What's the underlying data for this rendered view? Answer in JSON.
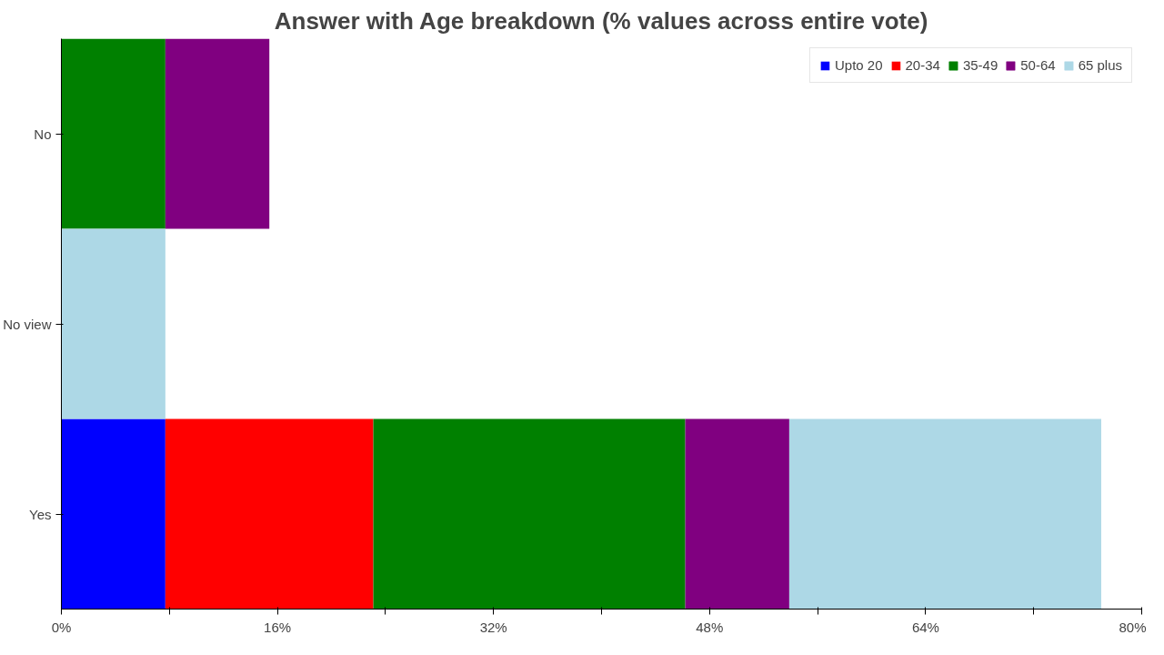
{
  "chart_data": {
    "type": "bar",
    "orientation": "horizontal",
    "stacked": true,
    "title": "Answer with Age breakdown (% values across entire vote)",
    "categories": [
      "No",
      "No view",
      "Yes"
    ],
    "series": [
      {
        "name": "Upto 20",
        "color": "#0000ff",
        "values": [
          null,
          null,
          7.7
        ]
      },
      {
        "name": "20-34",
        "color": "#ff0000",
        "values": [
          null,
          null,
          15.4
        ]
      },
      {
        "name": "35-49",
        "color": "#008000",
        "values": [
          7.7,
          null,
          23.1
        ]
      },
      {
        "name": "50-64",
        "color": "#800080",
        "values": [
          7.7,
          null,
          7.7
        ]
      },
      {
        "name": "65 plus",
        "color": "#add8e6",
        "values": [
          null,
          7.7,
          23.1
        ]
      }
    ],
    "xlim": [
      0,
      80
    ],
    "xticks": [
      {
        "value": 0,
        "label": "0%"
      },
      {
        "value": 8,
        "label": null
      },
      {
        "value": 16,
        "label": "16%"
      },
      {
        "value": 24,
        "label": null
      },
      {
        "value": 32,
        "label": "32%"
      },
      {
        "value": 40,
        "label": null
      },
      {
        "value": 48,
        "label": "48%"
      },
      {
        "value": 56,
        "label": null
      },
      {
        "value": 64,
        "label": "64%"
      },
      {
        "value": 72,
        "label": null
      },
      {
        "value": 80,
        "label": "80%"
      }
    ],
    "grid": false,
    "legend": "top right"
  }
}
